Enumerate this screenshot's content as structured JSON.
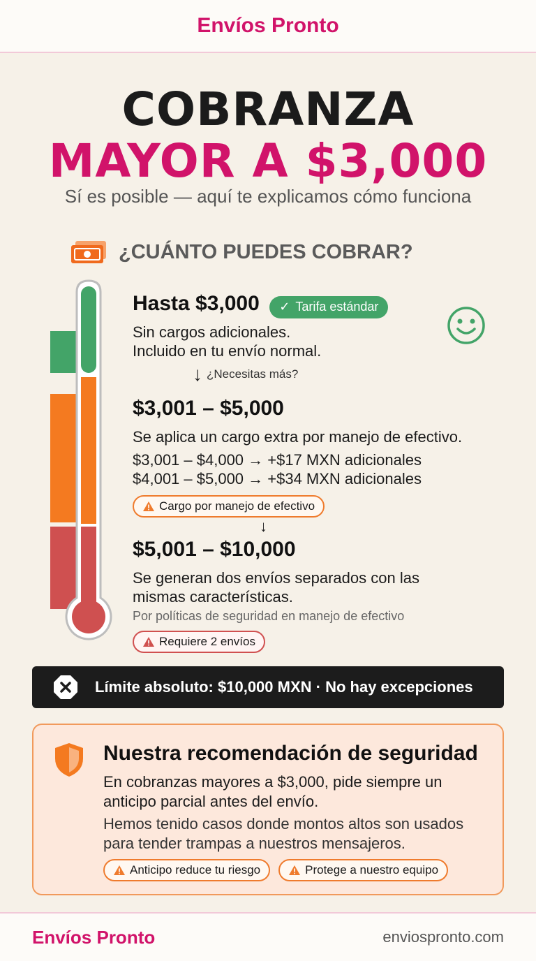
{
  "header": {
    "brand": "Envíos Pronto"
  },
  "hero": {
    "title_line1": "COBRANZA",
    "title_line2": "MAYOR A $3,000",
    "subtitle": "Sí es posible — aquí te explicamos cómo funciona"
  },
  "section": {
    "icon": "money-icon",
    "title": "¿CUÁNTO PUEDES COBRAR?"
  },
  "tiers": [
    {
      "title": "Hasta $3,000",
      "badge": "Tarifa estándar",
      "line1": "Sin cargos adicionales.",
      "line2": "Incluido en tu envío normal.",
      "color": "#43a468"
    },
    {
      "title": "$3,001 – $5,000",
      "line1": "Se aplica un cargo extra por manejo de efectivo.",
      "line2": "$3,001 – $4,000 → +$17 MXN adicionales",
      "line3": "$4,001 – $5,000 → +$34 MXN adicionales",
      "badge": "Cargo por manejo de efectivo",
      "color": "#f47a20"
    },
    {
      "title": "$5,001 – $10,000",
      "line1": "Se generan dos envíos separados con las",
      "line2": "mismas características.",
      "note": "Por políticas de seguridad en manejo de efectivo",
      "badge": "Requiere 2 envíos",
      "color": "#cf5050"
    }
  ],
  "arrows": {
    "more": "¿Necesitas más?"
  },
  "limit": {
    "text": "Límite absoluto: $10,000 MXN · No hay excepciones"
  },
  "recommendation": {
    "title": "Nuestra recomendación de seguridad",
    "p1": "En cobranzas mayores a $3,000, pide siempre un anticipo parcial antes del envío.",
    "p2": "Hemos tenido casos donde montos altos son usados para tender trampas a nuestros mensajeros.",
    "pill1": "Anticipo reduce tu riesgo",
    "pill2": "Protege a nuestro equipo"
  },
  "footer": {
    "brand": "Envíos Pronto",
    "url": "enviospronto.com"
  }
}
